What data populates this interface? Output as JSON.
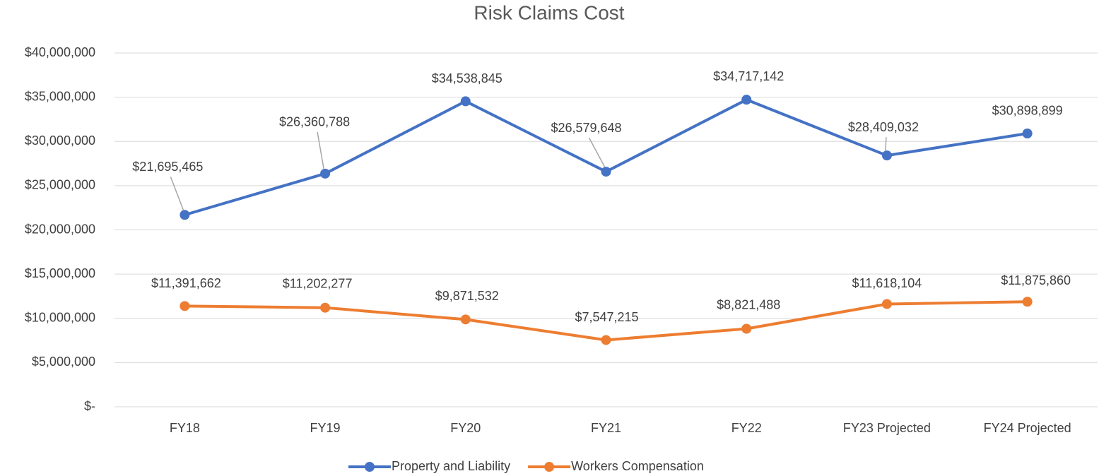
{
  "chart_data": {
    "type": "line",
    "title": "Risk Claims Cost",
    "categories": [
      "FY18",
      "FY19",
      "FY20",
      "FY21",
      "FY22",
      "FY23 Projected",
      "FY24 Projected"
    ],
    "series": [
      {
        "name": "Property and Liability",
        "color": "#4472c4",
        "values": [
          21695465,
          26360788,
          34538845,
          26579648,
          34717142,
          28409032,
          30898899
        ],
        "value_labels": [
          "$21,695,465",
          "$26,360,788",
          "$34,538,845",
          "$26,579,648",
          "$34,717,142",
          "$28,409,032",
          "$30,898,899"
        ]
      },
      {
        "name": "Workers Compensation",
        "color": "#ed7d31",
        "values": [
          11391662,
          11202277,
          9871532,
          7547215,
          8821488,
          11618104,
          11875860
        ],
        "value_labels": [
          "$11,391,662",
          "$11,202,277",
          "$9,871,532",
          "$7,547,215",
          "$8,821,488",
          "$11,618,104",
          "$11,875,860"
        ]
      }
    ],
    "ylim": [
      0,
      40000000
    ],
    "yticks": [
      {
        "value": 0,
        "label": "$-"
      },
      {
        "value": 5000000,
        "label": "$5,000,000"
      },
      {
        "value": 10000000,
        "label": "$10,000,000"
      },
      {
        "value": 15000000,
        "label": "$15,000,000"
      },
      {
        "value": 20000000,
        "label": "$20,000,000"
      },
      {
        "value": 25000000,
        "label": "$25,000,000"
      },
      {
        "value": 30000000,
        "label": "$30,000,000"
      },
      {
        "value": 35000000,
        "label": "$35,000,000"
      },
      {
        "value": 40000000,
        "label": "$40,000,000"
      }
    ],
    "grid": true,
    "legend": "bottom"
  }
}
